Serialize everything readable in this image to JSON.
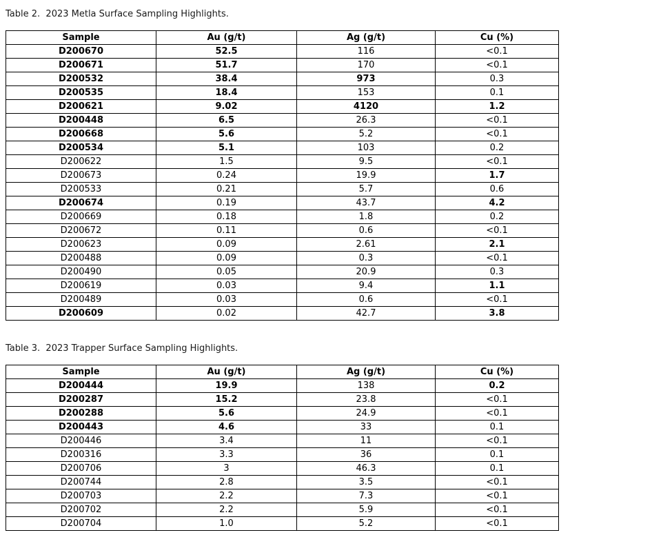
{
  "page": {
    "background_color": "#ffffff",
    "text_color": "#000000",
    "border_color": "#000000"
  },
  "tables": [
    {
      "title": "Table 2.  2023 Metla Surface Sampling Highlights.",
      "columns": [
        "Sample",
        "Au (g/t)",
        "Ag (g/t)",
        "Cu (%)"
      ],
      "rows": [
        {
          "cells": [
            "D200670",
            "52.5",
            "116",
            "<0.1"
          ],
          "bold": [
            true,
            true,
            false,
            false
          ]
        },
        {
          "cells": [
            "D200671",
            "51.7",
            "170",
            "<0.1"
          ],
          "bold": [
            true,
            true,
            false,
            false
          ]
        },
        {
          "cells": [
            "D200532",
            "38.4",
            "973",
            "0.3"
          ],
          "bold": [
            true,
            true,
            true,
            false
          ]
        },
        {
          "cells": [
            "D200535",
            "18.4",
            "153",
            "0.1"
          ],
          "bold": [
            true,
            true,
            false,
            false
          ]
        },
        {
          "cells": [
            "D200621",
            "9.02",
            "4120",
            "1.2"
          ],
          "bold": [
            true,
            true,
            true,
            true
          ]
        },
        {
          "cells": [
            "D200448",
            "6.5",
            "26.3",
            "<0.1"
          ],
          "bold": [
            true,
            true,
            false,
            false
          ]
        },
        {
          "cells": [
            "D200668",
            "5.6",
            "5.2",
            "<0.1"
          ],
          "bold": [
            true,
            true,
            false,
            false
          ]
        },
        {
          "cells": [
            "D200534",
            "5.1",
            "103",
            "0.2"
          ],
          "bold": [
            true,
            true,
            false,
            false
          ]
        },
        {
          "cells": [
            "D200622",
            "1.5",
            "9.5",
            "<0.1"
          ],
          "bold": [
            false,
            false,
            false,
            false
          ]
        },
        {
          "cells": [
            "D200673",
            "0.24",
            "19.9",
            "1.7"
          ],
          "bold": [
            false,
            false,
            false,
            true
          ]
        },
        {
          "cells": [
            "D200533",
            "0.21",
            "5.7",
            "0.6"
          ],
          "bold": [
            false,
            false,
            false,
            false
          ]
        },
        {
          "cells": [
            "D200674",
            "0.19",
            "43.7",
            "4.2"
          ],
          "bold": [
            true,
            false,
            false,
            true
          ]
        },
        {
          "cells": [
            "D200669",
            "0.18",
            "1.8",
            "0.2"
          ],
          "bold": [
            false,
            false,
            false,
            false
          ]
        },
        {
          "cells": [
            "D200672",
            "0.11",
            "0.6",
            "<0.1"
          ],
          "bold": [
            false,
            false,
            false,
            false
          ]
        },
        {
          "cells": [
            "D200623",
            "0.09",
            "2.61",
            "2.1"
          ],
          "bold": [
            false,
            false,
            false,
            true
          ]
        },
        {
          "cells": [
            "D200488",
            "0.09",
            "0.3",
            "<0.1"
          ],
          "bold": [
            false,
            false,
            false,
            false
          ]
        },
        {
          "cells": [
            "D200490",
            "0.05",
            "20.9",
            "0.3"
          ],
          "bold": [
            false,
            false,
            false,
            false
          ]
        },
        {
          "cells": [
            "D200619",
            "0.03",
            "9.4",
            "1.1"
          ],
          "bold": [
            false,
            false,
            false,
            true
          ]
        },
        {
          "cells": [
            "D200489",
            "0.03",
            "0.6",
            "<0.1"
          ],
          "bold": [
            false,
            false,
            false,
            false
          ]
        },
        {
          "cells": [
            "D200609",
            "0.02",
            "42.7",
            "3.8"
          ],
          "bold": [
            true,
            false,
            false,
            true
          ]
        }
      ]
    },
    {
      "title": "Table 3.  2023 Trapper Surface Sampling Highlights.",
      "columns": [
        "Sample",
        "Au (g/t)",
        "Ag (g/t)",
        "Cu (%)"
      ],
      "rows": [
        {
          "cells": [
            "D200444",
            "19.9",
            "138",
            "0.2"
          ],
          "bold": [
            true,
            true,
            false,
            true
          ]
        },
        {
          "cells": [
            "D200287",
            "15.2",
            "23.8",
            "<0.1"
          ],
          "bold": [
            true,
            true,
            false,
            false
          ]
        },
        {
          "cells": [
            "D200288",
            "5.6",
            "24.9",
            "<0.1"
          ],
          "bold": [
            true,
            true,
            false,
            false
          ]
        },
        {
          "cells": [
            "D200443",
            "4.6",
            "33",
            "0.1"
          ],
          "bold": [
            true,
            true,
            false,
            false
          ]
        },
        {
          "cells": [
            "D200446",
            "3.4",
            "11",
            "<0.1"
          ],
          "bold": [
            false,
            false,
            false,
            false
          ]
        },
        {
          "cells": [
            "D200316",
            "3.3",
            "36",
            "0.1"
          ],
          "bold": [
            false,
            false,
            false,
            false
          ]
        },
        {
          "cells": [
            "D200706",
            "3",
            "46.3",
            "0.1"
          ],
          "bold": [
            false,
            false,
            false,
            false
          ]
        },
        {
          "cells": [
            "D200744",
            "2.8",
            "3.5",
            "<0.1"
          ],
          "bold": [
            false,
            false,
            false,
            false
          ]
        },
        {
          "cells": [
            "D200703",
            "2.2",
            "7.3",
            "<0.1"
          ],
          "bold": [
            false,
            false,
            false,
            false
          ]
        },
        {
          "cells": [
            "D200702",
            "2.2",
            "5.9",
            "<0.1"
          ],
          "bold": [
            false,
            false,
            false,
            false
          ]
        },
        {
          "cells": [
            "D200704",
            "1.0",
            "5.2",
            "<0.1"
          ],
          "bold": [
            false,
            false,
            false,
            false
          ]
        }
      ]
    }
  ]
}
